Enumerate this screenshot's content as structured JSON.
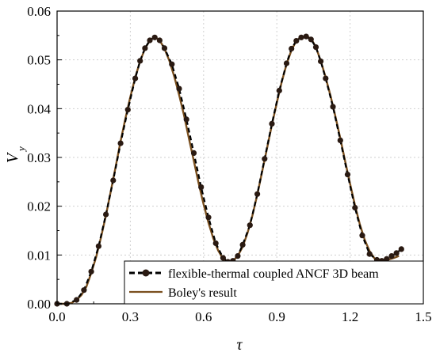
{
  "chart_data": {
    "type": "line",
    "xlabel": "τ",
    "ylabel": "V",
    "ylabel_sub": "y",
    "xlim": [
      0,
      1.5
    ],
    "ylim": [
      0,
      0.06
    ],
    "xticks": [
      "0.0",
      "0.3",
      "0.6",
      "0.9",
      "1.2",
      "1.5"
    ],
    "yticks": [
      "0.00",
      "0.01",
      "0.02",
      "0.03",
      "0.04",
      "0.05",
      "0.06"
    ],
    "grid": true,
    "legend": {
      "position": "bottom-right"
    },
    "colors": {
      "reference": "#7a4f1e",
      "simulation": "#000000"
    },
    "series": [
      {
        "name": "flexible-thermal coupled ANCF 3D beam",
        "style": "dashed-with-markers",
        "x": [
          0.0,
          0.04,
          0.08,
          0.11,
          0.14,
          0.17,
          0.2,
          0.23,
          0.26,
          0.29,
          0.32,
          0.34,
          0.36,
          0.38,
          0.4,
          0.42,
          0.44,
          0.47,
          0.5,
          0.53,
          0.56,
          0.59,
          0.62,
          0.65,
          0.68,
          0.7,
          0.72,
          0.74,
          0.76,
          0.79,
          0.82,
          0.85,
          0.88,
          0.91,
          0.94,
          0.96,
          0.98,
          1.0,
          1.02,
          1.04,
          1.06,
          1.08,
          1.1,
          1.13,
          1.16,
          1.19,
          1.22,
          1.25,
          1.28,
          1.31,
          1.33,
          1.35,
          1.37,
          1.39,
          1.41
        ],
        "y": [
          0.0,
          0.0,
          0.0008,
          0.0028,
          0.0066,
          0.0118,
          0.0183,
          0.0253,
          0.0329,
          0.0398,
          0.0462,
          0.0498,
          0.0524,
          0.054,
          0.0546,
          0.054,
          0.0524,
          0.0491,
          0.0441,
          0.0378,
          0.0309,
          0.0239,
          0.0177,
          0.0124,
          0.0094,
          0.0086,
          0.0088,
          0.0098,
          0.0121,
          0.0161,
          0.0225,
          0.0297,
          0.0369,
          0.0437,
          0.0493,
          0.0523,
          0.0539,
          0.0546,
          0.0548,
          0.0542,
          0.0526,
          0.0497,
          0.0462,
          0.0404,
          0.0335,
          0.0265,
          0.0197,
          0.014,
          0.0102,
          0.009,
          0.0088,
          0.0092,
          0.0098,
          0.0104,
          0.0112
        ]
      },
      {
        "name": "Boley's result",
        "style": "solid",
        "x": [
          0.0,
          0.02,
          0.04,
          0.06,
          0.08,
          0.1,
          0.12,
          0.14,
          0.16,
          0.18,
          0.2,
          0.22,
          0.24,
          0.26,
          0.28,
          0.3,
          0.32,
          0.34,
          0.36,
          0.38,
          0.4,
          0.42,
          0.44,
          0.46,
          0.48,
          0.5,
          0.52,
          0.54,
          0.56,
          0.58,
          0.6,
          0.62,
          0.64,
          0.66,
          0.68,
          0.7,
          0.72,
          0.74,
          0.76,
          0.78,
          0.8,
          0.82,
          0.84,
          0.86,
          0.88,
          0.9,
          0.92,
          0.94,
          0.96,
          0.98,
          1.0,
          1.02,
          1.04,
          1.06,
          1.08,
          1.1,
          1.12,
          1.14,
          1.16,
          1.18,
          1.2,
          1.22,
          1.24,
          1.26,
          1.28,
          1.3,
          1.32,
          1.34,
          1.36,
          1.38,
          1.4
        ],
        "y": [
          0.0,
          0.0,
          0.0,
          0.0002,
          0.0008,
          0.0018,
          0.0035,
          0.0063,
          0.0096,
          0.0136,
          0.0181,
          0.0231,
          0.0281,
          0.0333,
          0.038,
          0.0424,
          0.0464,
          0.0497,
          0.0523,
          0.054,
          0.0547,
          0.054,
          0.0523,
          0.0498,
          0.0466,
          0.0428,
          0.0386,
          0.0339,
          0.0293,
          0.0247,
          0.0204,
          0.0166,
          0.0134,
          0.0109,
          0.0092,
          0.0086,
          0.0088,
          0.0098,
          0.0117,
          0.0145,
          0.0181,
          0.0224,
          0.0271,
          0.0319,
          0.0367,
          0.0412,
          0.0455,
          0.0491,
          0.052,
          0.0539,
          0.0547,
          0.0548,
          0.0544,
          0.0526,
          0.0498,
          0.0464,
          0.0426,
          0.0384,
          0.0339,
          0.0292,
          0.0246,
          0.0202,
          0.0163,
          0.0131,
          0.0108,
          0.0093,
          0.0087,
          0.0088,
          0.0091,
          0.0094,
          0.0098
        ]
      }
    ]
  }
}
